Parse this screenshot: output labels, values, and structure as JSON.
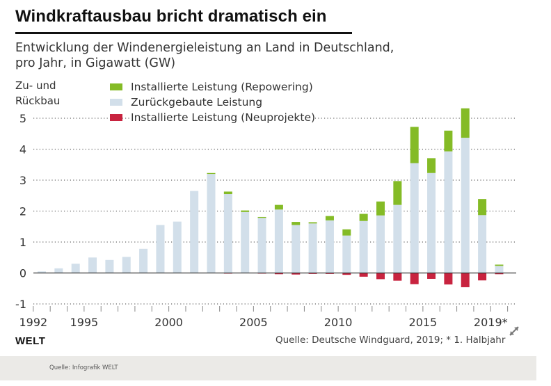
{
  "header": {
    "title": "Windkraftausbau bricht dramatisch ein",
    "subtitle_line1": "Entwicklung der Windenergieleistung an Land in Deutschland,",
    "subtitle_line2": "pro Jahr, in Gigawatt (GW)"
  },
  "legend": {
    "items": [
      {
        "label": "Installierte Leistung (Repowering)",
        "color": "#84bb26"
      },
      {
        "label": "Zurückgebaute Leistung",
        "color": "#d2dfea"
      },
      {
        "label": "Installierte Leistung (Neuprojekte)",
        "color": "#c8233f"
      }
    ]
  },
  "footer": {
    "logo": "WELT",
    "source": "Quelle: Deutsche Windguard, 2019; * 1. Halbjahr",
    "credit": "Quelle: Infografik WELT",
    "expand_icon": "expand-icon"
  },
  "chart_data": {
    "type": "bar",
    "stacked": true,
    "title": "Windkraftausbau bricht dramatisch ein",
    "subtitle": "Entwicklung der Windenergieleistung an Land in Deutschland, pro Jahr, in Gigawatt (GW)",
    "xlabel": "",
    "ylabel_line1": "Zu- und",
    "ylabel_line2": "Rückbau",
    "ylim": [
      -1,
      5
    ],
    "yticks": [
      -1,
      0,
      1,
      2,
      3,
      4,
      5
    ],
    "grid": true,
    "legend_position": "top",
    "x_tick_labels": [
      {
        "year": 1992,
        "label": "1992"
      },
      {
        "year": 1995,
        "label": "1995"
      },
      {
        "year": 2000,
        "label": "2000"
      },
      {
        "year": 2005,
        "label": "2005"
      },
      {
        "year": 2010,
        "label": "2010"
      },
      {
        "year": 2015,
        "label": "2015"
      },
      {
        "year": 2019,
        "label": "2019*"
      }
    ],
    "categories": [
      1992,
      1993,
      1994,
      1995,
      1996,
      1997,
      1998,
      1999,
      2000,
      2001,
      2002,
      2003,
      2004,
      2005,
      2006,
      2007,
      2008,
      2009,
      2010,
      2011,
      2012,
      2013,
      2014,
      2015,
      2016,
      2017,
      2018,
      2019
    ],
    "series": [
      {
        "name": "Zurückgebaute Leistung",
        "color": "#d2dfea",
        "values": [
          0.05,
          0.15,
          0.3,
          0.5,
          0.42,
          0.52,
          0.78,
          1.55,
          1.66,
          2.65,
          3.2,
          2.55,
          1.97,
          1.78,
          2.05,
          1.55,
          1.6,
          1.7,
          1.21,
          1.68,
          1.86,
          2.2,
          3.55,
          3.23,
          3.93,
          4.37,
          1.87,
          0.23
        ]
      },
      {
        "name": "Installierte Leistung (Repowering)",
        "color": "#84bb26",
        "values": [
          0,
          0,
          0,
          0,
          0,
          0,
          0,
          0,
          0,
          0,
          0.03,
          0.08,
          0.05,
          0.03,
          0.15,
          0.1,
          0.04,
          0.14,
          0.2,
          0.23,
          0.45,
          0.77,
          1.17,
          0.48,
          0.67,
          0.95,
          0.52,
          0.04
        ]
      },
      {
        "name": "Installierte Leistung (Neuprojekte)",
        "color": "#c8233f",
        "values": [
          0,
          0,
          0,
          0,
          0,
          0,
          0,
          0,
          0,
          0,
          0,
          -0.02,
          0,
          -0.02,
          -0.04,
          -0.05,
          -0.03,
          -0.03,
          -0.06,
          -0.12,
          -0.2,
          -0.25,
          -0.36,
          -0.19,
          -0.37,
          -0.46,
          -0.24,
          -0.04
        ]
      }
    ]
  }
}
